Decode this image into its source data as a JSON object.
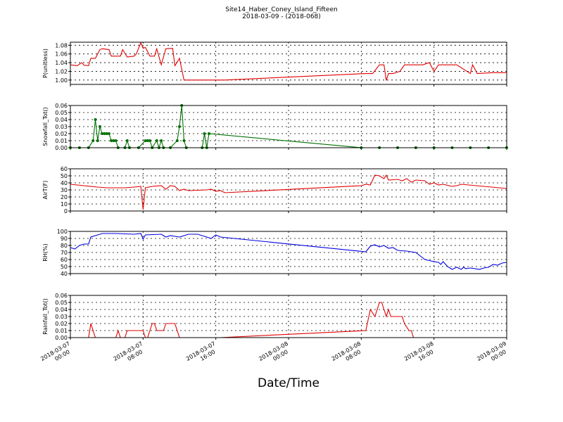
{
  "title": "Site14_Haber_Coney_Island_Fifteen",
  "subtitle": "2018-03-09 - (2018-068)",
  "chart_data": [
    {
      "type": "line",
      "ylabel": "P(unitless)",
      "ylim": [
        0.99,
        1.087
      ],
      "yticks": [
        {
          "value": 1.0,
          "label": "1.00"
        },
        1.02,
        1.04,
        1.06,
        1.08
      ],
      "xlim": [
        "2018-03-07 00:00",
        "2018-03-09 00:00"
      ],
      "xticks": [
        "2018-03-07 00:00",
        "2018-03-07 08:00",
        "2018-03-07 16:00",
        "2018-03-08 00:00",
        "2018-03-08 08:00",
        "2018-03-08 16:00",
        "2018-03-09 00:00"
      ],
      "show_xtick_labels": false,
      "grid": true,
      "markers": false,
      "x": [
        "2018-03-07 00:00",
        "2018-03-07 00:45",
        "2018-03-07 01:15",
        "2018-03-07 01:30",
        "2018-03-07 02:00",
        "2018-03-07 02:15",
        "2018-03-07 02:45",
        "2018-03-07 03:15",
        "2018-03-07 03:30",
        "2018-03-07 04:15",
        "2018-03-07 04:30",
        "2018-03-07 05:30",
        "2018-03-07 05:45",
        "2018-03-07 06:15",
        "2018-03-07 07:00",
        "2018-03-07 07:15",
        "2018-03-07 07:45",
        "2018-03-07 08:00",
        "2018-03-07 08:15",
        "2018-03-07 08:45",
        "2018-03-07 09:15",
        "2018-03-07 09:30",
        "2018-03-07 10:00",
        "2018-03-07 10:30",
        "2018-03-07 11:15",
        "2018-03-07 11:30",
        "2018-03-07 12:00",
        "2018-03-07 12:30",
        "2018-03-07 17:00",
        "2018-03-08 08:30",
        "2018-03-08 09:15",
        "2018-03-08 10:00",
        "2018-03-08 10:30",
        "2018-03-08 10:45",
        "2018-03-08 11:00",
        "2018-03-08 11:30",
        "2018-03-08 12:15",
        "2018-03-08 12:45",
        "2018-03-08 14:45",
        "2018-03-08 15:30",
        "2018-03-08 16:00",
        "2018-03-08 16:30",
        "2018-03-08 18:30",
        "2018-03-08 20:00",
        "2018-03-08 20:15",
        "2018-03-08 20:45",
        "2018-03-08 22:30",
        "2018-03-09 00:00"
      ],
      "series": [
        {
          "color": "#e00000",
          "values": [
            1.035,
            1.033,
            1.04,
            1.034,
            1.033,
            1.05,
            1.05,
            1.07,
            1.072,
            1.07,
            1.055,
            1.055,
            1.07,
            1.053,
            1.055,
            1.06,
            1.086,
            1.073,
            1.075,
            1.055,
            1.055,
            1.072,
            1.035,
            1.072,
            1.073,
            1.033,
            1.05,
            1.0,
            1.0,
            1.015,
            1.015,
            1.035,
            1.035,
            0.999,
            1.015,
            1.015,
            1.02,
            1.035,
            1.035,
            1.04,
            1.02,
            1.035,
            1.035,
            1.015,
            1.035,
            1.015,
            1.017,
            1.017
          ]
        }
      ]
    },
    {
      "type": "line",
      "ylabel": "Snowfall_Tot()",
      "ylim": [
        0,
        0.06
      ],
      "yticks": [
        {
          "value": 0,
          "label": "0.00"
        },
        0.01,
        0.02,
        0.03,
        0.04,
        0.05,
        0.06
      ],
      "xlim": [
        "2018-03-07 00:00",
        "2018-03-09 00:00"
      ],
      "xticks": [
        "2018-03-07 00:00",
        "2018-03-07 08:00",
        "2018-03-07 16:00",
        "2018-03-08 00:00",
        "2018-03-08 08:00",
        "2018-03-08 16:00",
        "2018-03-09 00:00"
      ],
      "show_xtick_labels": false,
      "grid": true,
      "markers": true,
      "x": [
        "2018-03-07 00:00",
        "2018-03-07 01:00",
        "2018-03-07 02:00",
        "2018-03-07 02:30",
        "2018-03-07 02:45",
        "2018-03-07 03:00",
        "2018-03-07 03:15",
        "2018-03-07 03:30",
        "2018-03-07 03:45",
        "2018-03-07 04:00",
        "2018-03-07 04:15",
        "2018-03-07 04:30",
        "2018-03-07 04:45",
        "2018-03-07 05:00",
        "2018-03-07 05:15",
        "2018-03-07 06:00",
        "2018-03-07 06:15",
        "2018-03-07 06:30",
        "2018-03-07 07:30",
        "2018-03-07 08:15",
        "2018-03-07 08:30",
        "2018-03-07 08:45",
        "2018-03-07 09:00",
        "2018-03-07 09:30",
        "2018-03-07 09:45",
        "2018-03-07 10:00",
        "2018-03-07 10:15",
        "2018-03-07 11:00",
        "2018-03-07 11:45",
        "2018-03-07 12:00",
        "2018-03-07 12:15",
        "2018-03-07 12:30",
        "2018-03-07 12:45",
        "2018-03-07 14:30",
        "2018-03-07 14:45",
        "2018-03-07 15:00",
        "2018-03-07 15:15",
        "2018-03-08 08:00",
        "2018-03-08 10:00",
        "2018-03-08 12:00",
        "2018-03-08 14:00",
        "2018-03-08 16:00",
        "2018-03-08 18:00",
        "2018-03-08 20:00",
        "2018-03-08 22:00",
        "2018-03-09 00:00"
      ],
      "series": [
        {
          "color": "#007000",
          "values": [
            0,
            0,
            0,
            0.01,
            0.04,
            0.01,
            0.03,
            0.02,
            0.02,
            0.02,
            0.02,
            0.01,
            0.01,
            0.01,
            0,
            0,
            0.01,
            0,
            0,
            0.01,
            0.01,
            0.01,
            0,
            0.01,
            0,
            0.01,
            0,
            0,
            0.01,
            0.03,
            0.06,
            0.01,
            0,
            0,
            0.02,
            0,
            0.02,
            0,
            0,
            0,
            0,
            0,
            0,
            0,
            0,
            0
          ]
        }
      ]
    },
    {
      "type": "line",
      "ylabel": "AirT(F)",
      "ylim": [
        0,
        60
      ],
      "yticks": [
        0,
        10,
        20,
        30,
        40,
        50,
        60
      ],
      "xlim": [
        "2018-03-07 00:00",
        "2018-03-09 00:00"
      ],
      "xticks": [
        "2018-03-07 00:00",
        "2018-03-07 08:00",
        "2018-03-07 16:00",
        "2018-03-08 00:00",
        "2018-03-08 08:00",
        "2018-03-08 16:00",
        "2018-03-09 00:00"
      ],
      "show_xtick_labels": false,
      "grid": true,
      "markers": false,
      "x": [
        "2018-03-07 00:00",
        "2018-03-07 01:30",
        "2018-03-07 03:00",
        "2018-03-07 04:00",
        "2018-03-07 06:00",
        "2018-03-07 07:00",
        "2018-03-07 07:45",
        "2018-03-07 08:00",
        "2018-03-07 08:15",
        "2018-03-07 09:00",
        "2018-03-07 10:00",
        "2018-03-07 10:30",
        "2018-03-07 11:00",
        "2018-03-07 11:30",
        "2018-03-07 12:00",
        "2018-03-07 12:30",
        "2018-03-07 13:00",
        "2018-03-07 15:00",
        "2018-03-07 15:30",
        "2018-03-07 16:00",
        "2018-03-07 16:30",
        "2018-03-07 17:00",
        "2018-03-08 08:00",
        "2018-03-08 08:30",
        "2018-03-08 09:00",
        "2018-03-08 09:30",
        "2018-03-08 10:00",
        "2018-03-08 10:30",
        "2018-03-08 10:45",
        "2018-03-08 11:00",
        "2018-03-08 12:00",
        "2018-03-08 12:30",
        "2018-03-08 13:00",
        "2018-03-08 13:30",
        "2018-03-08 14:00",
        "2018-03-08 15:00",
        "2018-03-08 15:30",
        "2018-03-08 16:00",
        "2018-03-08 16:30",
        "2018-03-08 17:00",
        "2018-03-08 18:00",
        "2018-03-08 18:30",
        "2018-03-08 19:00",
        "2018-03-09 00:00"
      ],
      "series": [
        {
          "color": "#e00000",
          "values": [
            38,
            36,
            34,
            33,
            33,
            34,
            35,
            2,
            33,
            35,
            36,
            31,
            36,
            35,
            29,
            31,
            29,
            30,
            31,
            28,
            29,
            26,
            36,
            38,
            37,
            51,
            50,
            46,
            51,
            44,
            45,
            43,
            46,
            41,
            44,
            43,
            38,
            40,
            37,
            38,
            35,
            36,
            38,
            32
          ]
        }
      ]
    },
    {
      "type": "line",
      "ylabel": "RH(%)",
      "ylim": [
        40,
        100
      ],
      "yticks": [
        40,
        50,
        60,
        70,
        80,
        90,
        100
      ],
      "xlim": [
        "2018-03-07 00:00",
        "2018-03-09 00:00"
      ],
      "xticks": [
        "2018-03-07 00:00",
        "2018-03-07 08:00",
        "2018-03-07 16:00",
        "2018-03-08 00:00",
        "2018-03-08 08:00",
        "2018-03-08 16:00",
        "2018-03-09 00:00"
      ],
      "show_xtick_labels": false,
      "grid": true,
      "markers": false,
      "x": [
        "2018-03-07 00:00",
        "2018-03-07 00:30",
        "2018-03-07 01:00",
        "2018-03-07 01:30",
        "2018-03-07 02:00",
        "2018-03-07 02:15",
        "2018-03-07 03:00",
        "2018-03-07 03:30",
        "2018-03-07 05:00",
        "2018-03-07 07:00",
        "2018-03-07 07:45",
        "2018-03-07 08:00",
        "2018-03-07 08:15",
        "2018-03-07 10:00",
        "2018-03-07 10:30",
        "2018-03-07 11:00",
        "2018-03-07 12:00",
        "2018-03-07 13:00",
        "2018-03-07 14:00",
        "2018-03-07 15:00",
        "2018-03-07 15:30",
        "2018-03-07 16:00",
        "2018-03-07 16:30",
        "2018-03-08 08:30",
        "2018-03-08 09:00",
        "2018-03-08 09:30",
        "2018-03-08 10:00",
        "2018-03-08 10:30",
        "2018-03-08 11:00",
        "2018-03-08 11:30",
        "2018-03-08 12:00",
        "2018-03-08 13:00",
        "2018-03-08 14:00",
        "2018-03-08 14:30",
        "2018-03-08 15:00",
        "2018-03-08 16:00",
        "2018-03-08 16:30",
        "2018-03-08 16:45",
        "2018-03-08 17:00",
        "2018-03-08 17:30",
        "2018-03-08 18:00",
        "2018-03-08 18:30",
        "2018-03-08 19:00",
        "2018-03-08 19:15",
        "2018-03-08 19:30",
        "2018-03-08 20:00",
        "2018-03-08 21:00",
        "2018-03-08 21:30",
        "2018-03-08 22:00",
        "2018-03-08 22:30",
        "2018-03-08 23:00",
        "2018-03-08 23:30",
        "2018-03-09 00:00"
      ],
      "series": [
        {
          "color": "#0000e0",
          "values": [
            77,
            75,
            80,
            82,
            82,
            92,
            95,
            97,
            97,
            96,
            97,
            89,
            95,
            96,
            92,
            94,
            92,
            96,
            96,
            92,
            90,
            95,
            92,
            71,
            79,
            81,
            78,
            80,
            76,
            77,
            73,
            72,
            70,
            65,
            60,
            57,
            56,
            53,
            57,
            50,
            46,
            49,
            46,
            49,
            47,
            48,
            46,
            48,
            49,
            53,
            52,
            55,
            56
          ]
        }
      ]
    },
    {
      "type": "line",
      "ylabel": "Rainfall_Tot()",
      "xlabel": "Date/Time",
      "ylim": [
        0,
        0.06
      ],
      "yticks": [
        {
          "value": 0,
          "label": "0.00"
        },
        0.01,
        0.02,
        0.03,
        0.04,
        0.05,
        0.06
      ],
      "xlim": [
        "2018-03-07 00:00",
        "2018-03-09 00:00"
      ],
      "xticks": [
        "2018-03-07 00:00",
        "2018-03-07 08:00",
        "2018-03-07 16:00",
        "2018-03-08 00:00",
        "2018-03-08 08:00",
        "2018-03-08 16:00",
        "2018-03-09 00:00"
      ],
      "show_xtick_labels": true,
      "grid": true,
      "markers": false,
      "x": [
        "2018-03-07 00:00",
        "2018-03-07 02:00",
        "2018-03-07 02:15",
        "2018-03-07 02:45",
        "2018-03-07 05:00",
        "2018-03-07 05:15",
        "2018-03-07 05:30",
        "2018-03-07 06:00",
        "2018-03-07 06:15",
        "2018-03-07 08:00",
        "2018-03-07 08:15",
        "2018-03-07 08:30",
        "2018-03-07 09:00",
        "2018-03-07 09:15",
        "2018-03-07 09:30",
        "2018-03-07 10:15",
        "2018-03-07 10:30",
        "2018-03-07 11:30",
        "2018-03-07 11:45",
        "2018-03-07 12:00",
        "2018-03-07 16:30",
        "2018-03-08 08:30",
        "2018-03-08 09:00",
        "2018-03-08 09:30",
        "2018-03-08 10:00",
        "2018-03-08 10:15",
        "2018-03-08 10:45",
        "2018-03-08 11:00",
        "2018-03-08 11:15",
        "2018-03-08 12:30",
        "2018-03-08 12:45",
        "2018-03-08 13:15",
        "2018-03-08 13:30",
        "2018-03-08 13:45",
        "2018-03-09 00:00"
      ],
      "series": [
        {
          "color": "#e00000",
          "values": [
            0,
            0,
            0.02,
            0,
            0,
            0.01,
            0,
            0,
            0.01,
            0.01,
            0,
            0,
            0.02,
            0.02,
            0.01,
            0.01,
            0.02,
            0.02,
            0.01,
            0,
            0,
            0.01,
            0.04,
            0.03,
            0.05,
            0.05,
            0.03,
            0.04,
            0.03,
            0.03,
            0.02,
            0.01,
            0.01,
            0,
            0
          ]
        }
      ]
    }
  ]
}
